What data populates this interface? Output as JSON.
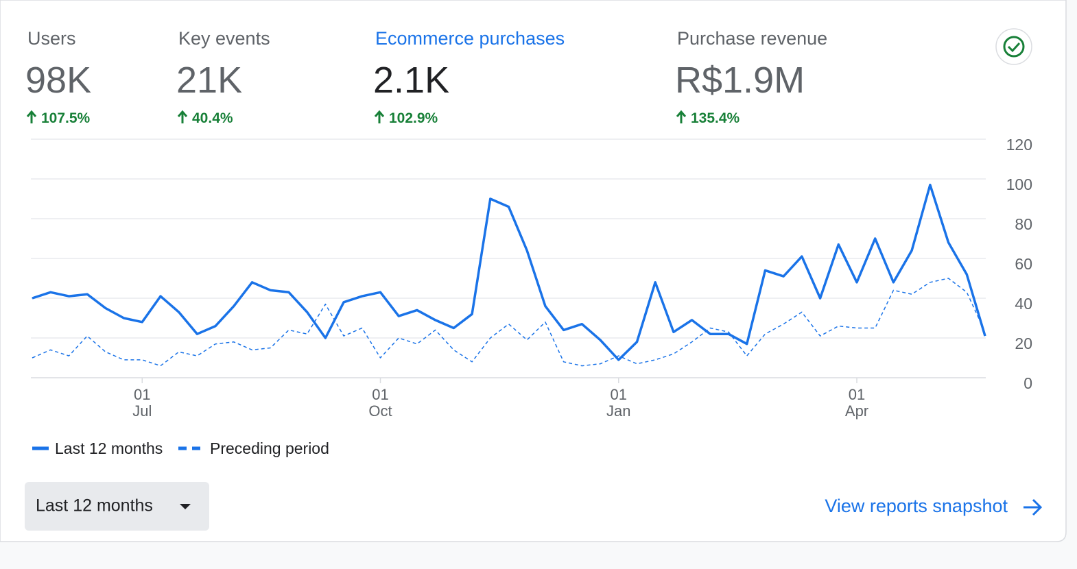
{
  "metrics": [
    {
      "label": "Users",
      "value": "98K",
      "change": "107.5%"
    },
    {
      "label": "Key events",
      "value": "21K",
      "change": "40.4%"
    },
    {
      "label": "Ecommerce purchases",
      "value": "2.1K",
      "change": "102.9%"
    },
    {
      "label": "Purchase revenue",
      "value": "R$1.9M",
      "change": "135.4%"
    }
  ],
  "chart_data": {
    "type": "line",
    "categories": [
      null,
      null,
      null,
      null,
      null,
      null,
      "01 Jul",
      null,
      null,
      null,
      null,
      null,
      null,
      null,
      null,
      null,
      null,
      null,
      null,
      "01 Oct",
      null,
      null,
      null,
      null,
      null,
      null,
      null,
      null,
      null,
      null,
      null,
      null,
      "01 Jan",
      null,
      null,
      null,
      null,
      null,
      null,
      null,
      null,
      null,
      null,
      null,
      null,
      "01 Apr",
      null,
      null,
      null,
      null,
      null,
      null,
      null
    ],
    "series": [
      {
        "name": "Last 12 months",
        "color": "#1a73e8",
        "values": [
          40,
          43,
          41,
          42,
          35,
          30,
          28,
          41,
          33,
          22,
          26,
          36,
          48,
          44,
          43,
          33,
          20,
          38,
          41,
          43,
          31,
          34,
          29,
          25,
          32,
          90,
          86,
          64,
          36,
          24,
          27,
          19,
          9,
          18,
          48,
          23,
          29,
          22,
          22,
          17,
          54,
          51,
          61,
          40,
          67,
          48,
          70,
          48,
          64,
          97,
          68,
          52,
          21
        ]
      },
      {
        "name": "Preceding period",
        "color": "#1a73e8",
        "values": [
          10,
          14,
          11,
          21,
          13,
          9,
          9,
          6,
          13,
          11,
          17,
          18,
          14,
          15,
          24,
          22,
          37,
          21,
          25,
          10,
          20,
          17,
          24,
          14,
          8,
          20,
          27,
          19,
          28,
          8,
          6,
          7,
          11,
          7,
          9,
          12,
          18,
          25,
          23,
          11,
          22,
          27,
          33,
          21,
          26,
          25,
          25,
          44,
          42,
          48,
          50,
          43,
          23
        ]
      }
    ],
    "ylim": [
      0,
      120
    ],
    "yticks": [
      0,
      20,
      40,
      60,
      80,
      100,
      120
    ],
    "grid": true
  },
  "range_selector": "Last 12 months",
  "link": "View reports snapshot"
}
